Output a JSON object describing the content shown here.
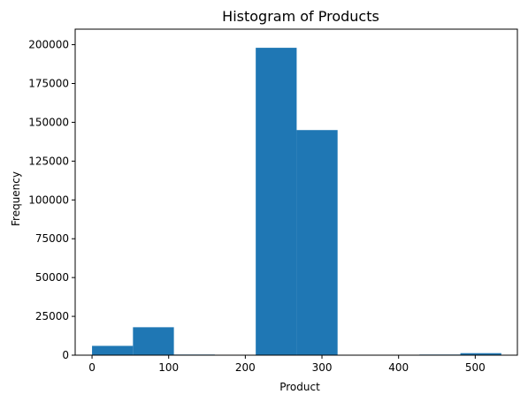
{
  "chart_data": {
    "type": "bar",
    "title": "Histogram of Products",
    "xlabel": "Product",
    "ylabel": "Frequency",
    "xlim": [
      -22,
      555
    ],
    "ylim": [
      0,
      210000
    ],
    "xticks": [
      0,
      100,
      200,
      300,
      400,
      500
    ],
    "yticks": [
      0,
      25000,
      50000,
      75000,
      100000,
      125000,
      150000,
      175000,
      200000
    ],
    "bins": [
      {
        "x0": 0,
        "x1": 53.4,
        "value": 6000
      },
      {
        "x0": 53.4,
        "x1": 106.8,
        "value": 18000
      },
      {
        "x0": 106.8,
        "x1": 160.2,
        "value": 400
      },
      {
        "x0": 160.2,
        "x1": 213.6,
        "value": 0
      },
      {
        "x0": 213.6,
        "x1": 267,
        "value": 198000
      },
      {
        "x0": 267,
        "x1": 320.4,
        "value": 145000
      },
      {
        "x0": 320.4,
        "x1": 373.8,
        "value": 0
      },
      {
        "x0": 373.8,
        "x1": 427.2,
        "value": 0
      },
      {
        "x0": 427.2,
        "x1": 480.6,
        "value": 400
      },
      {
        "x0": 480.6,
        "x1": 534,
        "value": 1300
      }
    ],
    "color": "#1f77b4",
    "grid": false,
    "legend": "none"
  }
}
